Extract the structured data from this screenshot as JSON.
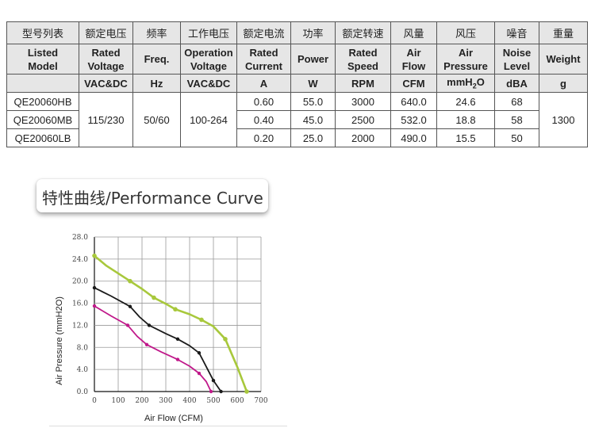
{
  "table": {
    "zh_headers": [
      "型号列表",
      "额定电压",
      "频率",
      "工作电压",
      "额定电流",
      "功率",
      "额定转速",
      "风量",
      "风压",
      "噪音",
      "重量"
    ],
    "en_headers": [
      {
        "l1": "Listed",
        "l2": "Model"
      },
      {
        "l1": "Rated",
        "l2": "Voltage"
      },
      {
        "l1": "Freq.",
        "l2": ""
      },
      {
        "l1": "Operation",
        "l2": "Voltage"
      },
      {
        "l1": "Rated",
        "l2": "Current"
      },
      {
        "l1": "Power",
        "l2": ""
      },
      {
        "l1": "Rated",
        "l2": "Speed"
      },
      {
        "l1": "Air",
        "l2": "Flow"
      },
      {
        "l1": "Air",
        "l2": "Pressure"
      },
      {
        "l1": "Noise",
        "l2": "Level"
      },
      {
        "l1": "Weight",
        "l2": ""
      }
    ],
    "units": {
      "voltage": "VAC&DC",
      "freq": "Hz",
      "op_voltage": "VAC&DC",
      "current": "A",
      "power": "W",
      "speed": "RPM",
      "flow": "CFM",
      "pressure_pre": "mmH",
      "pressure_sub": "2",
      "pressure_post": "O",
      "noise": "dBA",
      "weight": "g"
    },
    "shared": {
      "rated_voltage": "115/230",
      "freq": "50/60",
      "op_voltage": "100-264",
      "weight": "1300"
    },
    "rows": [
      {
        "model": "QE20060HB",
        "current": "0.60",
        "power": "55.0",
        "speed": "3000",
        "flow": "640.0",
        "pressure": "24.6",
        "noise": "68"
      },
      {
        "model": "QE20060MB",
        "current": "0.40",
        "power": "45.0",
        "speed": "2500",
        "flow": "532.0",
        "pressure": "18.8",
        "noise": "58"
      },
      {
        "model": "QE20060LB",
        "current": "0.20",
        "power": "25.0",
        "speed": "2000",
        "flow": "490.0",
        "pressure": "15.5",
        "noise": "50"
      }
    ]
  },
  "section_title": "特性曲线/Performance Curve",
  "chart_data": {
    "type": "line",
    "title": "",
    "xlabel": "Air Flow (CFM)",
    "ylabel": "Air Pressure (mmH2O)",
    "xlim": [
      0,
      700
    ],
    "ylim": [
      0,
      28
    ],
    "x_ticks": [
      "0",
      "100",
      "200",
      "300",
      "400",
      "500",
      "600",
      "700"
    ],
    "y_ticks": [
      "0.0",
      "4.0",
      "8.0",
      "12.0",
      "16.0",
      "20.0",
      "24.0",
      "28.0"
    ],
    "grid": true,
    "series": [
      {
        "color": "#a8c83c",
        "points": [
          [
            0,
            24.6
          ],
          [
            50,
            22.8
          ],
          [
            150,
            20.0
          ],
          [
            200,
            18.6
          ],
          [
            250,
            17.0
          ],
          [
            300,
            15.9
          ],
          [
            340,
            14.9
          ],
          [
            400,
            14.0
          ],
          [
            450,
            13.0
          ],
          [
            500,
            11.8
          ],
          [
            550,
            9.5
          ],
          [
            600,
            4.5
          ],
          [
            640,
            0
          ]
        ]
      },
      {
        "color": "#1a1a1a",
        "points": [
          [
            0,
            18.8
          ],
          [
            70,
            17.3
          ],
          [
            150,
            15.4
          ],
          [
            190,
            13.5
          ],
          [
            230,
            12.0
          ],
          [
            300,
            10.5
          ],
          [
            350,
            9.5
          ],
          [
            400,
            8.3
          ],
          [
            440,
            7.0
          ],
          [
            470,
            4.5
          ],
          [
            500,
            2.0
          ],
          [
            532,
            0
          ]
        ]
      },
      {
        "color": "#c0188a",
        "points": [
          [
            0,
            15.5
          ],
          [
            70,
            13.7
          ],
          [
            140,
            12.0
          ],
          [
            180,
            10.0
          ],
          [
            220,
            8.5
          ],
          [
            280,
            7.2
          ],
          [
            350,
            5.8
          ],
          [
            400,
            4.6
          ],
          [
            440,
            3.3
          ],
          [
            470,
            1.8
          ],
          [
            490,
            0
          ]
        ]
      }
    ]
  }
}
